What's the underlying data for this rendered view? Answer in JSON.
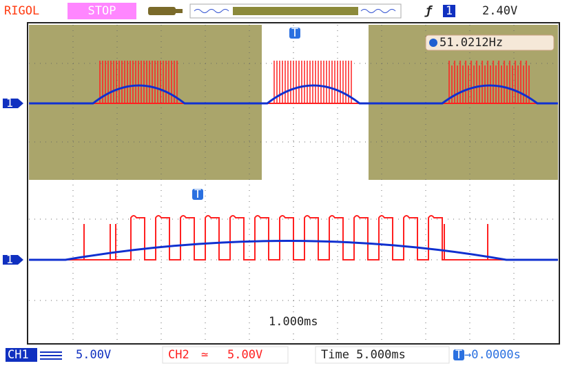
{
  "header": {
    "brand": "RIGOL",
    "status": "STOP",
    "trigger_channel": "1",
    "trigger_level": "2.40V"
  },
  "screen": {
    "frequency": "51.0212Hz",
    "trigger_marker": "T",
    "channel_marker": "1",
    "zoom_timebase": "1.000ms"
  },
  "footer": {
    "ch1_label": "CH1",
    "ch1_scale": "5.00V",
    "ch2_label": "CH2",
    "ch2_coupling": "≃",
    "ch2_scale": "5.00V",
    "time": "Time 5.000ms",
    "offset_marker": "T",
    "offset": "→0.0000s"
  }
}
